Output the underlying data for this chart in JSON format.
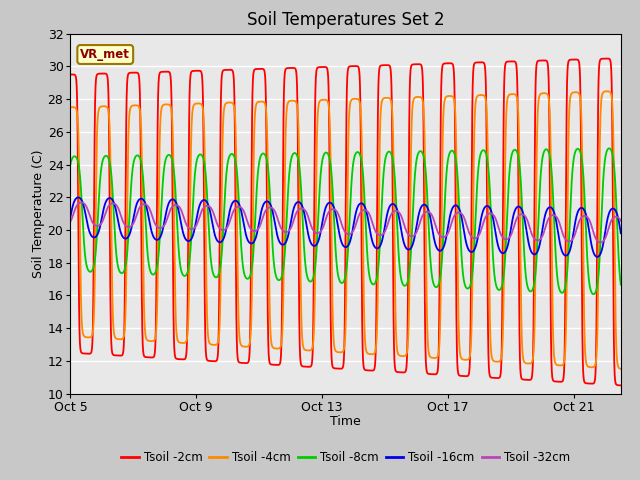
{
  "title": "Soil Temperatures Set 2",
  "xlabel": "Time",
  "ylabel": "Soil Temperature (C)",
  "ylim": [
    10,
    32
  ],
  "yticks": [
    10,
    12,
    14,
    16,
    18,
    20,
    22,
    24,
    26,
    28,
    30,
    32
  ],
  "xtick_labels": [
    "Oct 5",
    "Oct 9",
    "Oct 13",
    "Oct 17",
    "Oct 21"
  ],
  "xtick_positions": [
    0,
    4,
    8,
    12,
    16
  ],
  "n_days": 17.5,
  "pts_per_day": 288,
  "legend_label": "VR_met",
  "legend_label_color": "#8B0000",
  "legend_box_facecolor": "#ffffcc",
  "legend_box_edgecolor": "#997700",
  "fig_facecolor": "#c8c8c8",
  "ax_facecolor": "#e8e8e8",
  "grid_color": "#ffffff",
  "series": [
    {
      "name": "Tsoil -2cm",
      "color": "#ff0000",
      "lw": 1.3
    },
    {
      "name": "Tsoil -4cm",
      "color": "#ff8800",
      "lw": 1.3
    },
    {
      "name": "Tsoil -8cm",
      "color": "#00cc00",
      "lw": 1.3
    },
    {
      "name": "Tsoil -16cm",
      "color": "#0000ee",
      "lw": 1.3
    },
    {
      "name": "Tsoil -32cm",
      "color": "#bb44bb",
      "lw": 1.3
    }
  ]
}
